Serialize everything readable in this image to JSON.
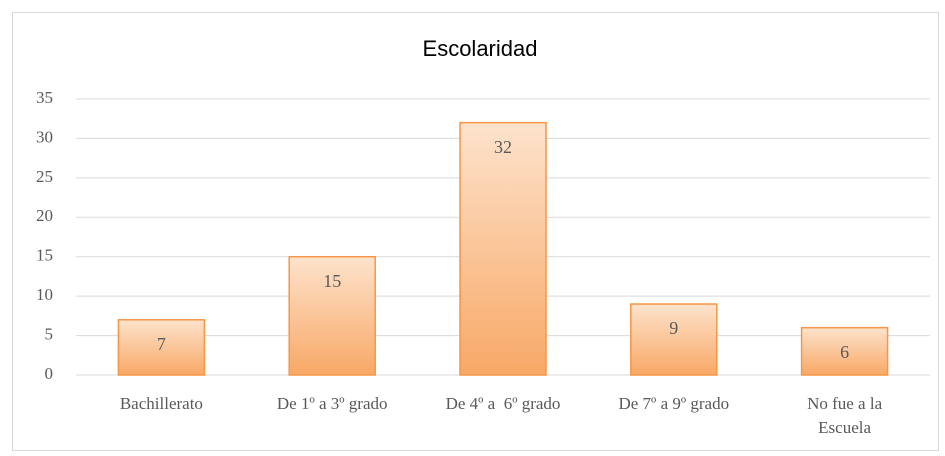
{
  "chart_data": {
    "type": "bar",
    "title": "Escolaridad",
    "categories": [
      "Bachillerato",
      "De 1º a 3º grado",
      "De 4º a  6º grado",
      "De 7º a 9º grado",
      "No fue a la Escuela"
    ],
    "values": [
      7,
      15,
      32,
      9,
      6
    ],
    "color": "#f79646",
    "ylim": [
      0,
      35
    ],
    "yticks": [
      0,
      5,
      10,
      15,
      20,
      25,
      30,
      35
    ],
    "grid": true
  }
}
